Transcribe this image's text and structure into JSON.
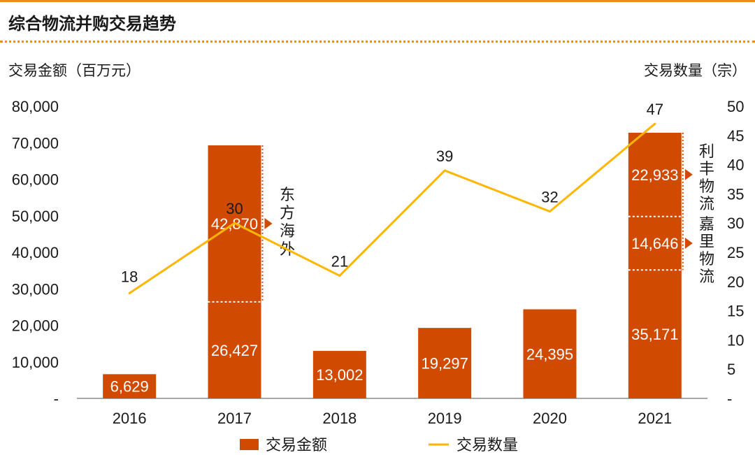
{
  "title": "综合物流并购交易趋势",
  "colors": {
    "bar": "#d04a02",
    "line": "#ffb600",
    "accent": "#e8901a",
    "text": "#1a1a1a"
  },
  "chart_data": {
    "type": "bar+line",
    "categories": [
      "2016",
      "2017",
      "2018",
      "2019",
      "2020",
      "2021"
    ],
    "left_axis": {
      "label": "交易金额（百万元）",
      "range": [
        0,
        80000
      ],
      "ticks": [
        "-",
        "10,000",
        "20,000",
        "30,000",
        "40,000",
        "50,000",
        "60,000",
        "70,000",
        "80,000"
      ]
    },
    "right_axis": {
      "label": "交易数量（宗）",
      "range": [
        0,
        50
      ],
      "ticks": [
        "-",
        "5",
        "10",
        "15",
        "20",
        "25",
        "30",
        "35",
        "40",
        "45",
        "50"
      ]
    },
    "bar_series": {
      "name": "交易金额",
      "segments": [
        [
          {
            "value": 6629,
            "label": "6,629"
          }
        ],
        [
          {
            "value": 26427,
            "label": "26,427"
          },
          {
            "value": 42870,
            "label": "42,870",
            "note": "东方海外"
          }
        ],
        [
          {
            "value": 13002,
            "label": "13,002"
          }
        ],
        [
          {
            "value": 19297,
            "label": "19,297"
          }
        ],
        [
          {
            "value": 24395,
            "label": "24,395"
          }
        ],
        [
          {
            "value": 35171,
            "label": "35,171"
          },
          {
            "value": 14646,
            "label": "14,646",
            "note": "嘉里物流"
          },
          {
            "value": 22933,
            "label": "22,933",
            "note": "利丰物流"
          }
        ]
      ]
    },
    "line_series": {
      "name": "交易数量",
      "values": [
        18,
        30,
        21,
        39,
        32,
        47
      ],
      "labels": [
        "18",
        "30",
        "21",
        "39",
        "32",
        "47"
      ]
    },
    "legend": [
      {
        "name": "交易金额",
        "kind": "bar"
      },
      {
        "name": "交易数量",
        "kind": "line"
      }
    ],
    "legend_position": "bottom"
  }
}
